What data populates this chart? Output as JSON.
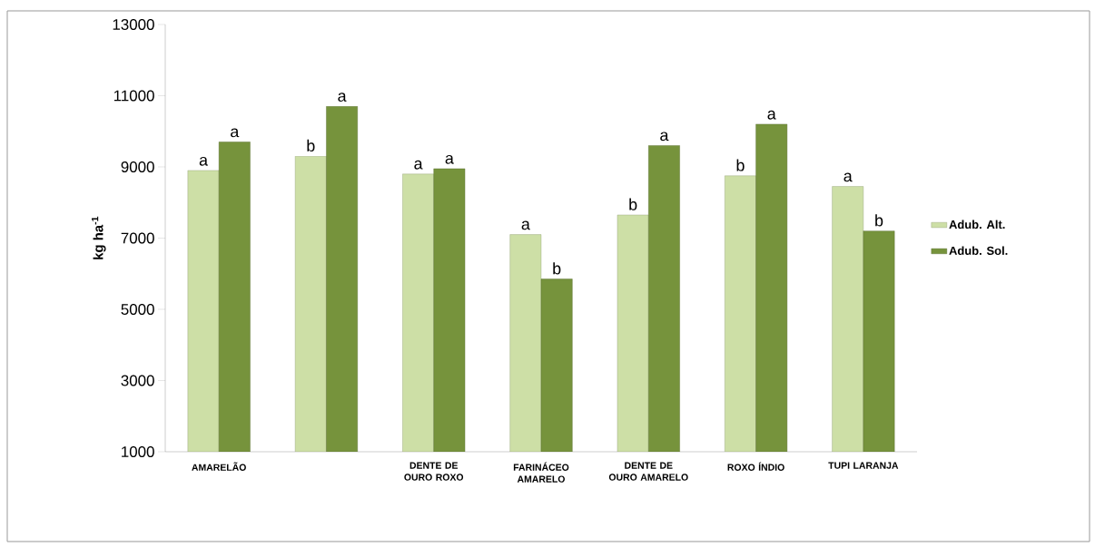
{
  "chart_data": {
    "type": "bar",
    "ylabel": "kg ha$^{-1}$",
    "categories": [
      "AMARELÃO",
      null,
      "DENTE DE OURO ROXO",
      "FARINÁCEO AMARELO",
      "DENTE DE OURO AMARELO",
      "ROXO ÍNDIO",
      "TUPI LARANJA"
    ],
    "series": [
      {
        "name": "Adub. Alt.",
        "color": "#cddfa6",
        "values": [
          8900,
          9300,
          8800,
          7100,
          7650,
          8750,
          8450
        ],
        "value_labels": [
          "a",
          "b",
          "a",
          "a",
          "b",
          "b",
          "a"
        ]
      },
      {
        "name": "Adub. Sol.",
        "color": "#76933c",
        "values": [
          9700,
          10700,
          8950,
          5850,
          9600,
          10200,
          7200
        ],
        "value_labels": [
          "a",
          "a",
          "a",
          "b",
          "a",
          "a",
          "b"
        ]
      }
    ],
    "ylim": [
      1000,
      13000
    ],
    "yticks": [
      1000,
      3000,
      5000,
      7000,
      9000,
      11000,
      13000
    ],
    "grid": false,
    "legend": "right"
  }
}
